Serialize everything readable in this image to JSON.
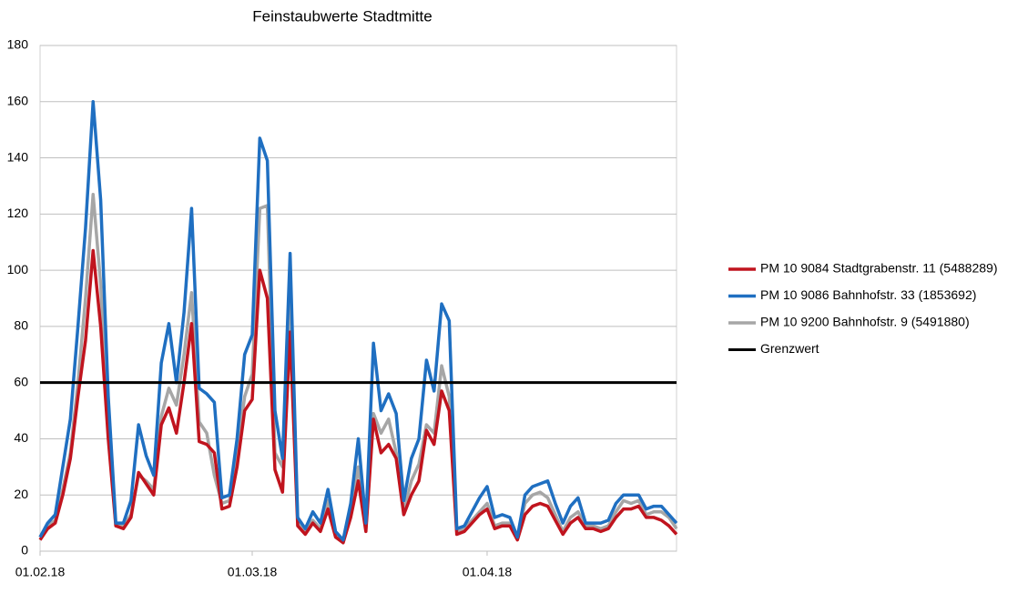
{
  "chart_data": {
    "type": "line",
    "title": "Feinstaubwerte Stadtmitte",
    "categories": [
      "01.02.18",
      null,
      null,
      null,
      null,
      null,
      null,
      null,
      null,
      null,
      null,
      null,
      null,
      null,
      null,
      null,
      null,
      null,
      null,
      null,
      null,
      null,
      null,
      null,
      null,
      null,
      null,
      null,
      "01.03.18",
      null,
      null,
      null,
      null,
      null,
      null,
      null,
      null,
      null,
      null,
      null,
      null,
      null,
      null,
      null,
      null,
      null,
      null,
      null,
      null,
      null,
      null,
      null,
      null,
      null,
      null,
      null,
      null,
      null,
      null,
      "01.04.18",
      null,
      null,
      null,
      null,
      null,
      null,
      null,
      null,
      null,
      null,
      null,
      null,
      null,
      null,
      null,
      null,
      null,
      null,
      null,
      null,
      null,
      null,
      null,
      null,
      null
    ],
    "series": [
      {
        "name": "PM 10 9084 Stadtgrabenstr. 11 (5488289)",
        "color": "#c0141e",
        "values": [
          4,
          8,
          10,
          20,
          33,
          55,
          75,
          107,
          80,
          40,
          9,
          8,
          12,
          28,
          24,
          20,
          45,
          51,
          42,
          60,
          81,
          39,
          38,
          35,
          15,
          16,
          30,
          50,
          54,
          100,
          90,
          29,
          21,
          78,
          9,
          6,
          10,
          7,
          15,
          5,
          3,
          12,
          25,
          7,
          47,
          35,
          38,
          33,
          13,
          20,
          25,
          43,
          38,
          57,
          50,
          6,
          7,
          10,
          13,
          15,
          8,
          9,
          9,
          4,
          13,
          16,
          17,
          16,
          11,
          6,
          10,
          12,
          8,
          8,
          7,
          8,
          12,
          15,
          15,
          16,
          12,
          12,
          11,
          9,
          6
        ]
      },
      {
        "name": "PM 10 9086 Bahnhofstr. 33 (1853692)",
        "color": "#1f6fc1",
        "values": [
          5,
          10,
          13,
          30,
          47,
          80,
          115,
          160,
          125,
          55,
          10,
          10,
          18,
          45,
          34,
          27,
          67,
          81,
          60,
          85,
          122,
          58,
          56,
          53,
          19,
          20,
          40,
          70,
          77,
          147,
          139,
          50,
          33,
          106,
          12,
          8,
          14,
          10,
          22,
          7,
          4,
          17,
          40,
          10,
          74,
          50,
          56,
          49,
          18,
          33,
          40,
          68,
          57,
          88,
          82,
          8,
          9,
          14,
          19,
          23,
          12,
          13,
          12,
          5,
          20,
          23,
          24,
          25,
          17,
          10,
          16,
          19,
          10,
          10,
          10,
          11,
          17,
          20,
          20,
          20,
          15,
          16,
          16,
          13,
          10
        ]
      },
      {
        "name": "PM 10 9200 Bahnhofstr. 9 (5491880)",
        "color": "#a6a6a6",
        "values": [
          5,
          9,
          11,
          22,
          35,
          60,
          90,
          127,
          95,
          45,
          9,
          9,
          13,
          27,
          25,
          22,
          48,
          58,
          52,
          70,
          92,
          46,
          42,
          27,
          17,
          18,
          35,
          55,
          63,
          122,
          123,
          35,
          30,
          94,
          11,
          7,
          11,
          8,
          18,
          6,
          3,
          14,
          30,
          8,
          49,
          42,
          47,
          35,
          14,
          25,
          31,
          45,
          42,
          66,
          55,
          7,
          8,
          11,
          14,
          17,
          9,
          10,
          10,
          5,
          17,
          20,
          21,
          19,
          13,
          7,
          12,
          14,
          9,
          9,
          8,
          9,
          14,
          18,
          17,
          18,
          13,
          14,
          14,
          12,
          8
        ]
      }
    ],
    "threshold": {
      "name": "Grenzwert",
      "value": 60,
      "color": "#000000"
    },
    "ylim": [
      0,
      180
    ],
    "yticks": [
      0,
      20,
      40,
      60,
      80,
      100,
      120,
      140,
      160,
      180
    ],
    "grid": true,
    "legend": "right"
  }
}
